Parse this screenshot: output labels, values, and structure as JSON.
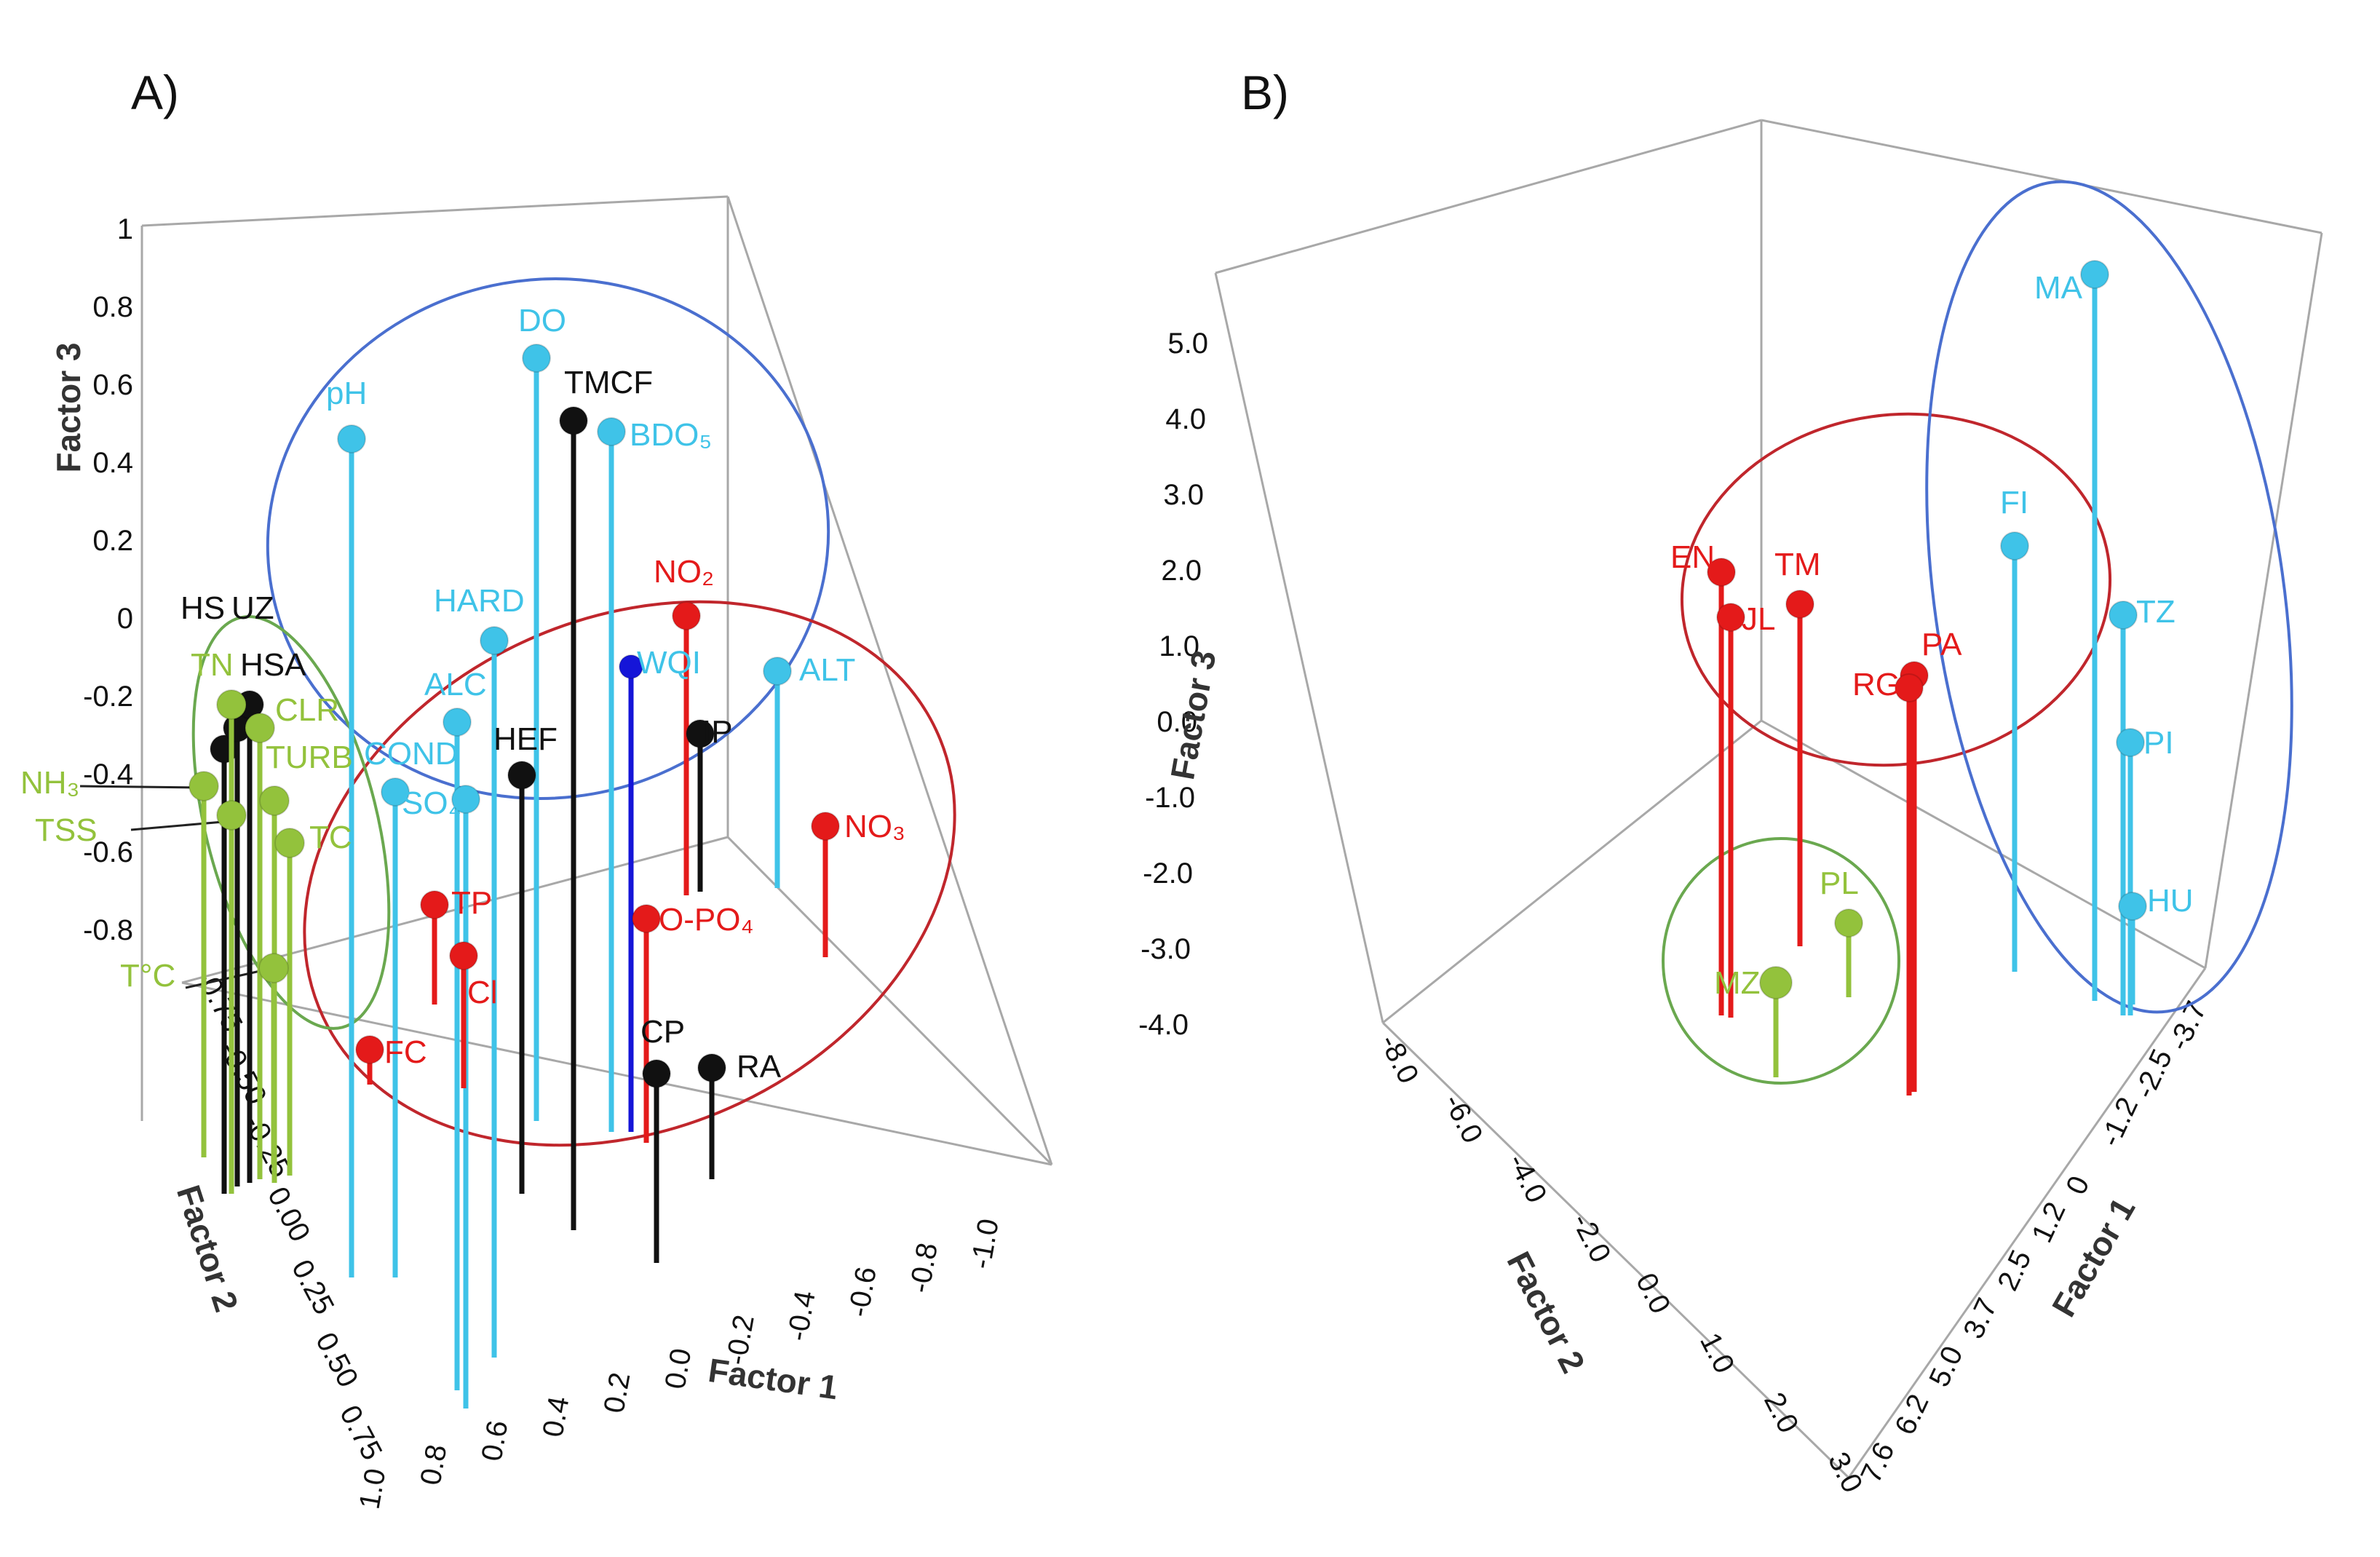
{
  "colors": {
    "blue": "#3fc3e8",
    "red": "#e41a1a",
    "black": "#111111",
    "green": "#93c23c",
    "darkblue": "#1515d8",
    "ellipse_blue": "#4a6fcf",
    "ellipse_red": "#c0262c",
    "ellipse_green": "#6aa84f",
    "box": "#a8a8a8"
  },
  "chart_data": [
    {
      "panel": "A)",
      "type": "scatter",
      "subtype": "3d-lollipop",
      "xlabel": "Factor 1",
      "ylabel": "Factor 2",
      "zlabel": "Factor 3",
      "factor1_ticks": [
        "1.0",
        "0.8",
        "0.6",
        "0.4",
        "0.2",
        "0.0",
        "-0.2",
        "-0.4",
        "-0.6",
        "-0.8",
        "-1.0"
      ],
      "factor2_ticks": [
        "-0.75",
        "-0.50",
        "-0.25",
        "0.00",
        "0.25",
        "0.50",
        "0.75"
      ],
      "factor3_ticks": [
        "1",
        "0.8",
        "0.6",
        "0.4",
        "0.2",
        "0",
        "-0.2",
        "-0.4",
        "-0.6",
        "-0.8"
      ],
      "points": [
        {
          "label": "DO",
          "group": "blue"
        },
        {
          "label": "TMCF",
          "group": "black"
        },
        {
          "label": "BDO₅",
          "group": "blue"
        },
        {
          "label": "pH",
          "group": "blue"
        },
        {
          "label": "NO₂",
          "group": "red"
        },
        {
          "label": "HARD",
          "group": "blue"
        },
        {
          "label": "WQI",
          "group": "darkblue"
        },
        {
          "label": "ALT",
          "group": "blue"
        },
        {
          "label": "ALC",
          "group": "blue"
        },
        {
          "label": "IP",
          "group": "black"
        },
        {
          "label": "HEF",
          "group": "black"
        },
        {
          "label": "COND",
          "group": "blue"
        },
        {
          "label": "SO₄",
          "group": "blue"
        },
        {
          "label": "NO₃",
          "group": "red"
        },
        {
          "label": "TP",
          "group": "red"
        },
        {
          "label": "O-PO₄",
          "group": "red"
        },
        {
          "label": "Cl",
          "group": "red"
        },
        {
          "label": "FC",
          "group": "red"
        },
        {
          "label": "CP",
          "group": "black"
        },
        {
          "label": "RA",
          "group": "black"
        },
        {
          "label": "HS",
          "group": "black"
        },
        {
          "label": "UZ",
          "group": "black"
        },
        {
          "label": "HSA",
          "group": "black"
        },
        {
          "label": "TN",
          "group": "green"
        },
        {
          "label": "CLR",
          "group": "green"
        },
        {
          "label": "TURB",
          "group": "green"
        },
        {
          "label": "NH₃",
          "group": "green"
        },
        {
          "label": "TSS",
          "group": "green"
        },
        {
          "label": "TC",
          "group": "green"
        },
        {
          "label": "T°C",
          "group": "green"
        }
      ]
    },
    {
      "panel": "B)",
      "type": "scatter",
      "subtype": "3d-lollipop",
      "xlabel": "Factor 1",
      "ylabel": "Factor 2",
      "zlabel": "Factor 3",
      "factor1_ticks": [
        "7.6",
        "6.2",
        "5.0",
        "3.7",
        "2.5",
        "1.2",
        "0",
        "-1.2",
        "-2.5",
        "-3.7"
      ],
      "factor2_ticks": [
        "-8.0",
        "-6.0",
        "-4.0",
        "-2.0",
        "0.0",
        "1.0",
        "2.0",
        "3.0"
      ],
      "factor3_ticks": [
        "5.0",
        "4.0",
        "3.0",
        "2.0",
        "1.0",
        "0.0",
        "-1.0",
        "-2.0",
        "-3.0",
        "-4.0"
      ],
      "points": [
        {
          "label": "MA",
          "group": "blue"
        },
        {
          "label": "FI",
          "group": "blue"
        },
        {
          "label": "TZ",
          "group": "blue"
        },
        {
          "label": "PI",
          "group": "blue"
        },
        {
          "label": "HU",
          "group": "blue"
        },
        {
          "label": "EN",
          "group": "red"
        },
        {
          "label": "JL",
          "group": "red"
        },
        {
          "label": "TM",
          "group": "red"
        },
        {
          "label": "PA",
          "group": "red"
        },
        {
          "label": "RG",
          "group": "red"
        },
        {
          "label": "PL",
          "group": "green"
        },
        {
          "label": "MZ",
          "group": "green"
        }
      ]
    }
  ]
}
